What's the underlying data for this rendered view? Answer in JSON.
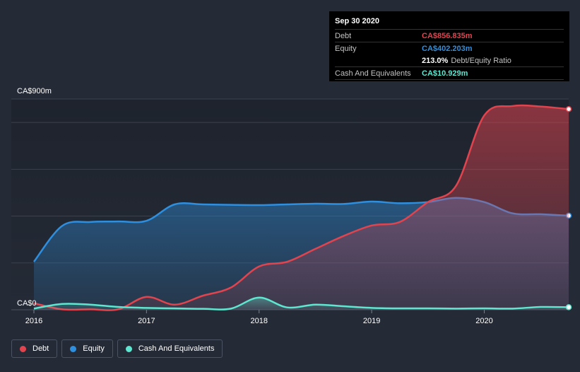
{
  "chart_data": {
    "type": "area",
    "y_top_label": "CA$900m",
    "y_bottom_label": "CA$0",
    "ylim": [
      0,
      900
    ],
    "x_ticks": [
      "2016",
      "2017",
      "2018",
      "2019",
      "2020"
    ],
    "x_tick_values": [
      2016,
      2017,
      2018,
      2019,
      2020
    ],
    "xlim": [
      2016,
      2020.75
    ],
    "grid": true,
    "series": [
      {
        "name": "Debt",
        "color": "#e0444f",
        "points": [
          [
            2016,
            28
          ],
          [
            2016.25,
            2
          ],
          [
            2016.5,
            2
          ],
          [
            2016.75,
            2
          ],
          [
            2017,
            55
          ],
          [
            2017.25,
            22
          ],
          [
            2017.5,
            60
          ],
          [
            2017.75,
            95
          ],
          [
            2018,
            185
          ],
          [
            2018.25,
            205
          ],
          [
            2018.5,
            260
          ],
          [
            2018.75,
            315
          ],
          [
            2019,
            360
          ],
          [
            2019.25,
            375
          ],
          [
            2019.5,
            460
          ],
          [
            2019.75,
            530
          ],
          [
            2020,
            830
          ],
          [
            2020.25,
            870
          ],
          [
            2020.5,
            868
          ],
          [
            2020.75,
            857
          ]
        ]
      },
      {
        "name": "Equity",
        "color": "#2f8fdf",
        "points": [
          [
            2016,
            205
          ],
          [
            2016.25,
            358
          ],
          [
            2016.5,
            375
          ],
          [
            2016.75,
            377
          ],
          [
            2017,
            380
          ],
          [
            2017.25,
            450
          ],
          [
            2017.5,
            450
          ],
          [
            2017.75,
            448
          ],
          [
            2018,
            447
          ],
          [
            2018.25,
            450
          ],
          [
            2018.5,
            453
          ],
          [
            2018.75,
            452
          ],
          [
            2019,
            462
          ],
          [
            2019.25,
            455
          ],
          [
            2019.5,
            460
          ],
          [
            2019.75,
            478
          ],
          [
            2020,
            460
          ],
          [
            2020.25,
            412
          ],
          [
            2020.5,
            408
          ],
          [
            2020.75,
            402
          ]
        ]
      },
      {
        "name": "Cash And Equivalents",
        "color": "#5ee6d0",
        "points": [
          [
            2016,
            5
          ],
          [
            2016.25,
            25
          ],
          [
            2016.5,
            22
          ],
          [
            2016.75,
            12
          ],
          [
            2017,
            8
          ],
          [
            2017.25,
            6
          ],
          [
            2017.5,
            4
          ],
          [
            2017.75,
            5
          ],
          [
            2018,
            52
          ],
          [
            2018.25,
            10
          ],
          [
            2018.5,
            22
          ],
          [
            2018.75,
            15
          ],
          [
            2019,
            8
          ],
          [
            2019.25,
            6
          ],
          [
            2019.5,
            6
          ],
          [
            2019.75,
            5
          ],
          [
            2020,
            6
          ],
          [
            2020.25,
            5
          ],
          [
            2020.5,
            12
          ],
          [
            2020.75,
            11
          ]
        ]
      }
    ]
  },
  "tooltip": {
    "date": "Sep 30 2020",
    "rows": [
      {
        "label": "Debt",
        "value": "CA$856.835m",
        "color": "#e0444f"
      },
      {
        "label": "Equity",
        "value": "CA$402.203m",
        "color": "#2f8fdf"
      },
      {
        "label": "",
        "value": "213.0%",
        "sub": "Debt/Equity Ratio",
        "color": "#ffffff"
      },
      {
        "label": "Cash And Equivalents",
        "value": "CA$10.929m",
        "color": "#5ee6d0"
      }
    ]
  },
  "legend": [
    {
      "label": "Debt",
      "color": "#e0444f"
    },
    {
      "label": "Equity",
      "color": "#2f8fdf"
    },
    {
      "label": "Cash And Equivalents",
      "color": "#5ee6d0"
    }
  ]
}
